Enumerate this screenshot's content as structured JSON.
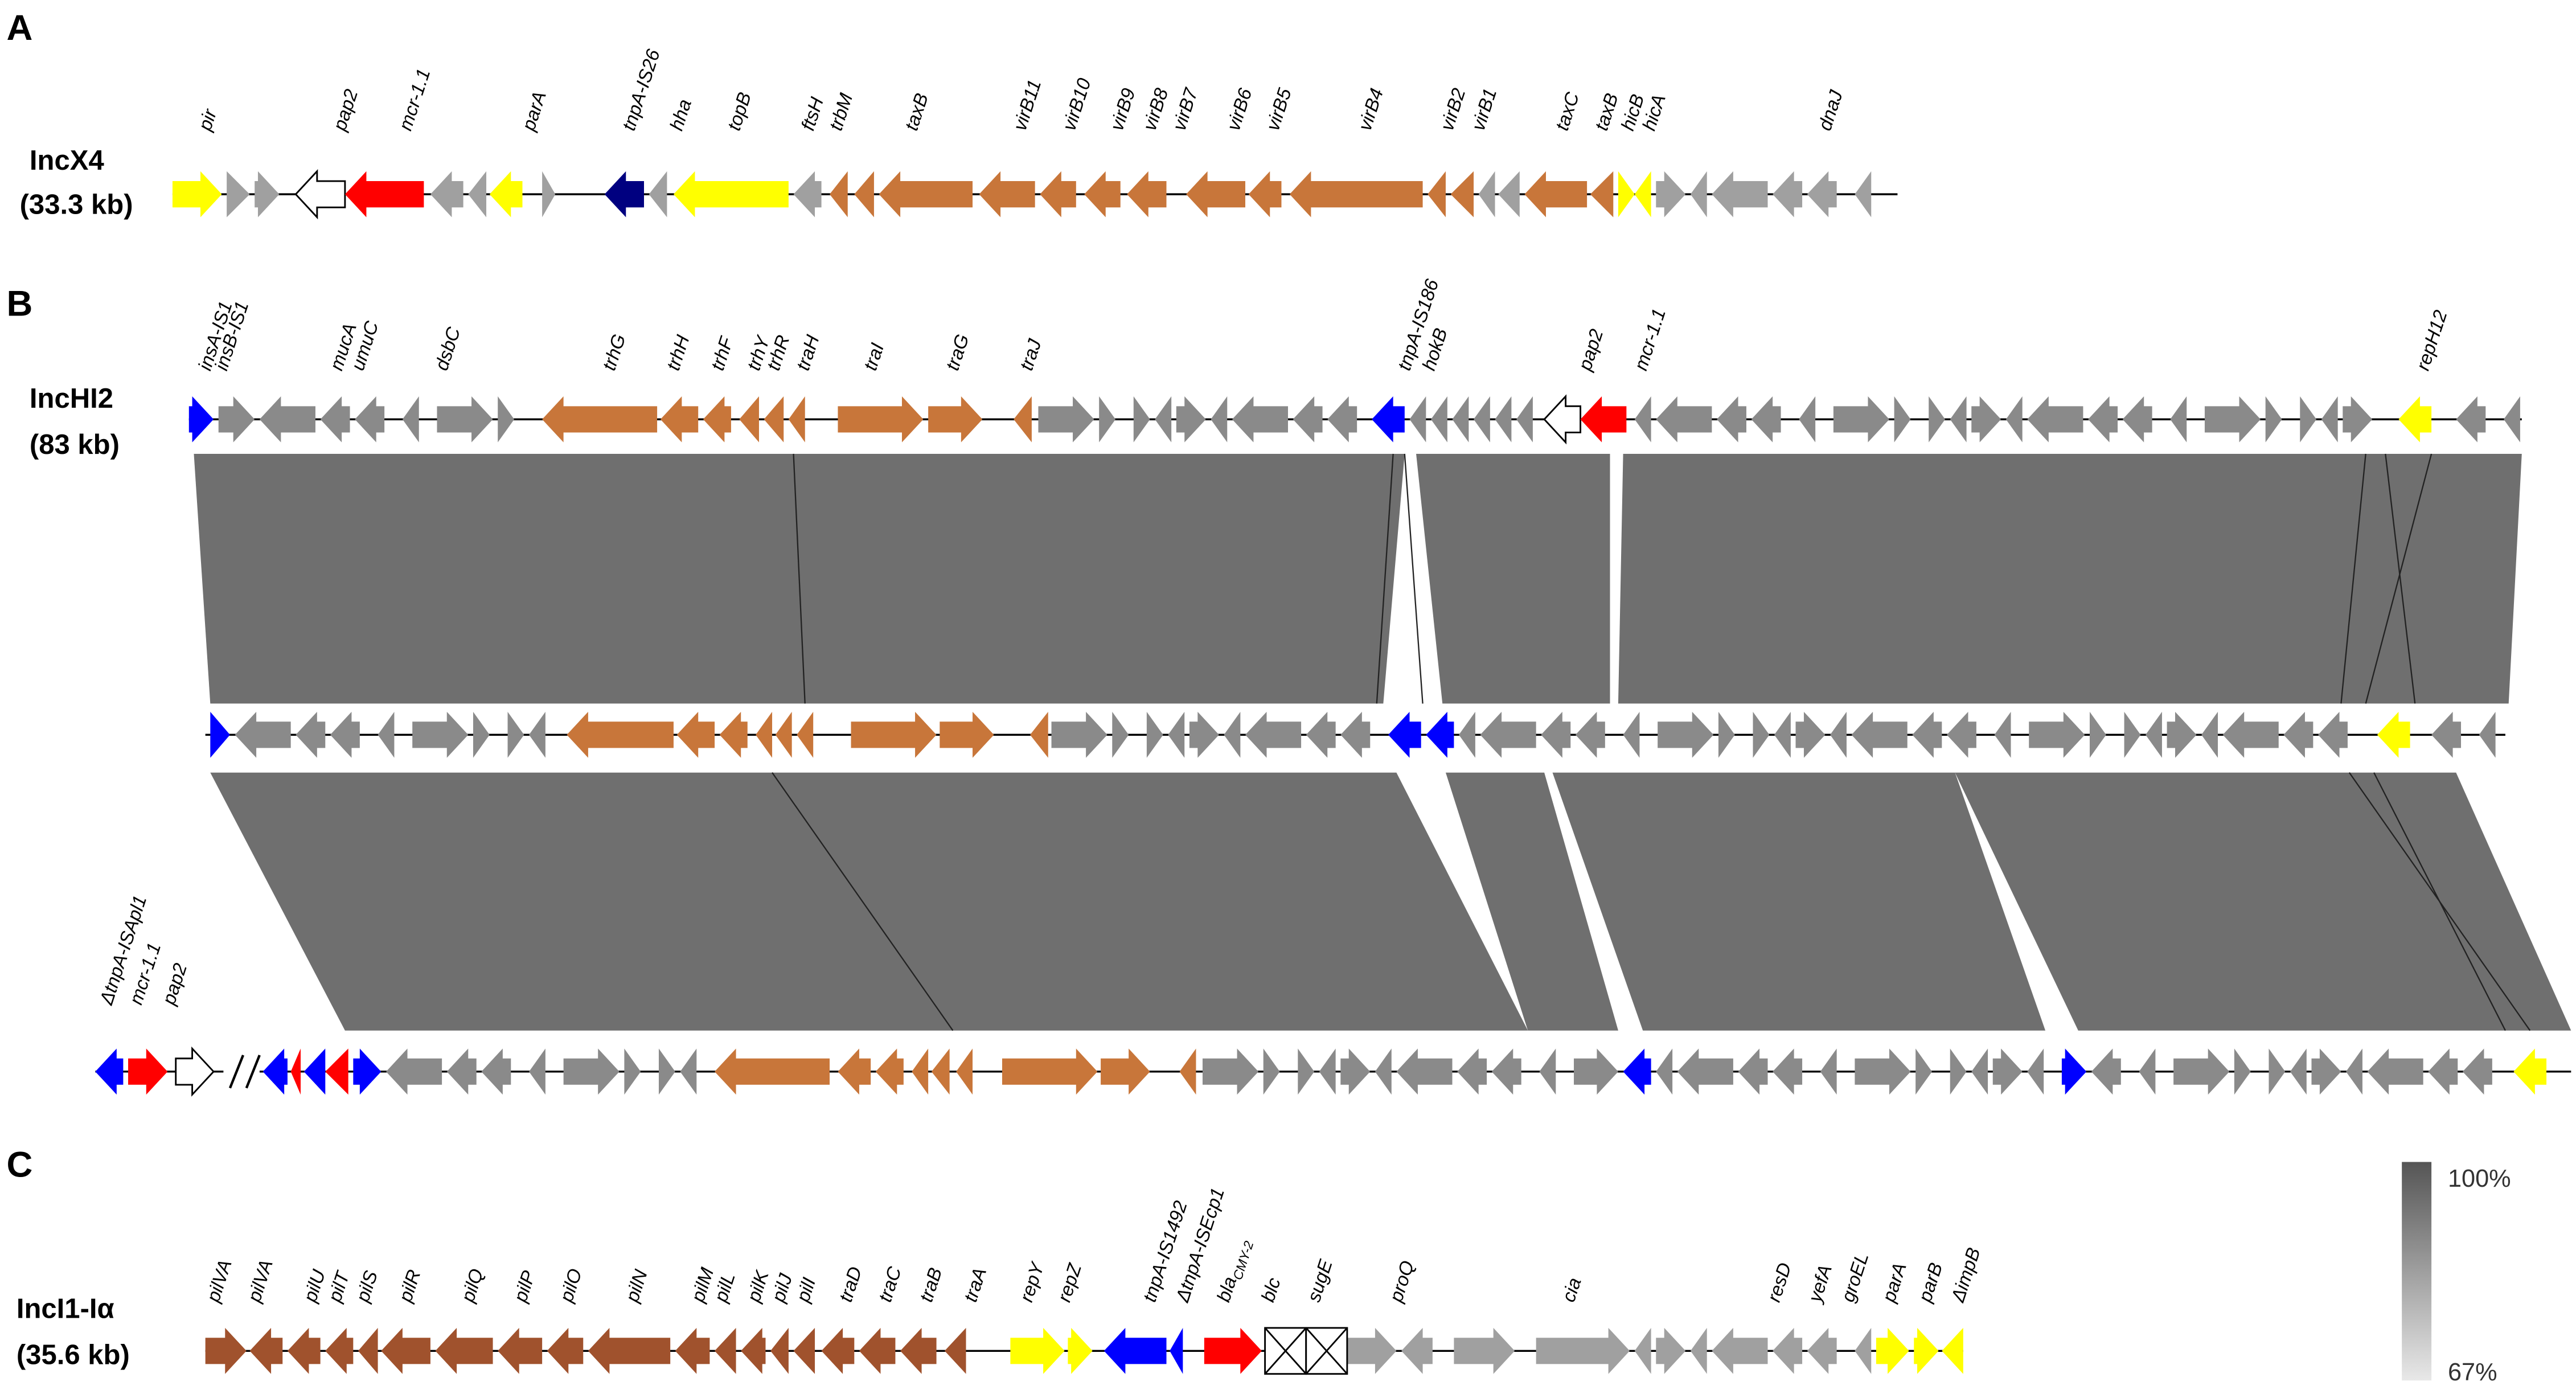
{
  "panels": [
    {
      "label": "A",
      "plasmid": "IncX4",
      "size": "(33.3 kb)",
      "genes": [
        "pir",
        "pap2",
        "mcr-1.1",
        "parA",
        "tnpA-IS26",
        "hha",
        "topB",
        "ftsH",
        "trbM",
        "taxB",
        "virB11",
        "virB10",
        "virB9",
        "virB8",
        "virB7",
        "virB6",
        "virB5",
        "virB4",
        "virB2",
        "virB1",
        "taxC",
        "taxB",
        "hicB",
        "hicA",
        "dnaJ"
      ]
    },
    {
      "label": "B",
      "plasmid": "IncHI2",
      "size": "(83 kb)",
      "genes": [
        "insA-IS1",
        "insB-IS1",
        "mucA",
        "umuC",
        "dsbC",
        "trhG",
        "trhH",
        "trhF",
        "trhY",
        "trhR",
        "traH",
        "traI",
        "traG",
        "traJ",
        "tnpA-IS186",
        "hokB",
        "pap2",
        "mcr-1.1",
        "repH12"
      ],
      "genes_bottom": [
        "ΔtnpA-ISApl1",
        "mcr-1.1",
        "pap2"
      ]
    },
    {
      "label": "C",
      "plasmid": "IncI1-Iα",
      "size": "(35.6 kb)",
      "genes": [
        "pilVA",
        "pilVA",
        "pilU",
        "pilT",
        "pilS",
        "pilR",
        "pilQ",
        "pilP",
        "pilO",
        "pilN",
        "pilM",
        "pilL",
        "pilK",
        "pilJ",
        "pilI",
        "traD",
        "traC",
        "traB",
        "traA",
        "repY",
        "repZ",
        "tnpA-IS1492",
        "ΔtnpA-ISEcp1",
        {
          "text": "bla",
          "subscript": "CMY-2"
        },
        "blc",
        "sugE",
        "proQ",
        "cia",
        "resD",
        "yefA",
        "groEL",
        "parA",
        "parB",
        "ΔimpB"
      ]
    }
  ],
  "legend": {
    "max": "100%",
    "min": "67%"
  }
}
